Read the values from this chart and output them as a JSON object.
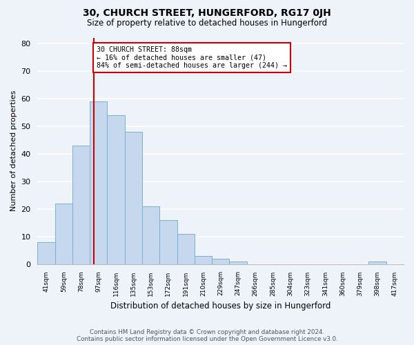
{
  "title": "30, CHURCH STREET, HUNGERFORD, RG17 0JH",
  "subtitle": "Size of property relative to detached houses in Hungerford",
  "xlabel": "Distribution of detached houses by size in Hungerford",
  "ylabel": "Number of detached properties",
  "bar_labels": [
    "41sqm",
    "59sqm",
    "78sqm",
    "97sqm",
    "116sqm",
    "135sqm",
    "153sqm",
    "172sqm",
    "191sqm",
    "210sqm",
    "229sqm",
    "247sqm",
    "266sqm",
    "285sqm",
    "304sqm",
    "323sqm",
    "341sqm",
    "360sqm",
    "379sqm",
    "398sqm",
    "417sqm"
  ],
  "bar_heights": [
    8,
    22,
    43,
    59,
    54,
    48,
    21,
    16,
    11,
    3,
    2,
    1,
    0,
    0,
    0,
    0,
    0,
    0,
    0,
    1,
    0
  ],
  "bar_color": "#c5d8ee",
  "bar_edge_color": "#7aafd4",
  "annotation_text": "30 CHURCH STREET: 88sqm\n← 16% of detached houses are smaller (47)\n84% of semi-detached houses are larger (244) →",
  "vline_x_index": 2.72,
  "vline_color": "#cc0000",
  "annotation_box_facecolor": "#ffffff",
  "annotation_box_edgecolor": "#cc0000",
  "ylim": [
    0,
    82
  ],
  "yticks": [
    0,
    10,
    20,
    30,
    40,
    50,
    60,
    70,
    80
  ],
  "footer_text": "Contains HM Land Registry data © Crown copyright and database right 2024.\nContains public sector information licensed under the Open Government Licence v3.0.",
  "bg_color": "#eef2f9"
}
